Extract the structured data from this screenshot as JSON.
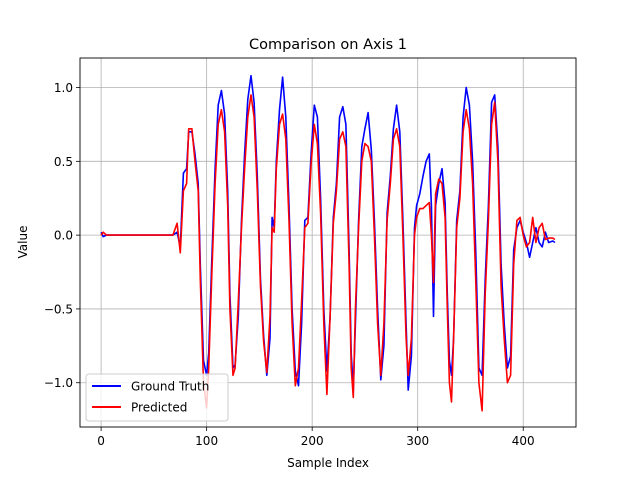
{
  "chart_data": {
    "type": "line",
    "title": "Comparison on Axis 1",
    "xlabel": "Sample Index",
    "ylabel": "Value",
    "xlim": [
      -20,
      450
    ],
    "ylim": [
      -1.3,
      1.2
    ],
    "x_ticks": [
      0,
      100,
      200,
      300,
      400
    ],
    "x_tick_labels": [
      "0",
      "100",
      "200",
      "300",
      "400"
    ],
    "y_ticks": [
      -1.0,
      -0.5,
      0.0,
      0.5,
      1.0
    ],
    "y_tick_labels": [
      "−1.0",
      "−0.5",
      "0.0",
      "0.5",
      "1.0"
    ],
    "grid": true,
    "legend_position": "lower-left",
    "series": [
      {
        "name": "Ground Truth",
        "color": "#0000ff",
        "points": [
          [
            0,
            0.02
          ],
          [
            2,
            -0.01
          ],
          [
            5,
            0.0
          ],
          [
            10,
            0.0
          ],
          [
            20,
            0.0
          ],
          [
            30,
            0.0
          ],
          [
            40,
            0.0
          ],
          [
            50,
            0.0
          ],
          [
            60,
            0.0
          ],
          [
            68,
            0.0
          ],
          [
            72,
            0.02
          ],
          [
            75,
            -0.08
          ],
          [
            78,
            0.42
          ],
          [
            81,
            0.45
          ],
          [
            83,
            0.7
          ],
          [
            86,
            0.7
          ],
          [
            89,
            0.55
          ],
          [
            92,
            0.35
          ],
          [
            94,
            -0.2
          ],
          [
            97,
            -0.85
          ],
          [
            100,
            -0.95
          ],
          [
            102,
            -0.8
          ],
          [
            105,
            -0.15
          ],
          [
            108,
            0.45
          ],
          [
            111,
            0.88
          ],
          [
            114,
            0.98
          ],
          [
            117,
            0.82
          ],
          [
            120,
            0.3
          ],
          [
            122,
            -0.4
          ],
          [
            125,
            -0.9
          ],
          [
            127,
            -0.88
          ],
          [
            130,
            -0.55
          ],
          [
            133,
            0.1
          ],
          [
            136,
            0.55
          ],
          [
            139,
            0.92
          ],
          [
            142,
            1.08
          ],
          [
            145,
            0.9
          ],
          [
            148,
            0.4
          ],
          [
            151,
            -0.3
          ],
          [
            154,
            -0.68
          ],
          [
            157,
            -0.95
          ],
          [
            160,
            -0.7
          ],
          [
            162,
            0.12
          ],
          [
            164,
            0.05
          ],
          [
            166,
            0.5
          ],
          [
            169,
            0.85
          ],
          [
            172,
            1.07
          ],
          [
            175,
            0.8
          ],
          [
            178,
            0.2
          ],
          [
            181,
            -0.5
          ],
          [
            184,
            -0.92
          ],
          [
            187,
            -1.02
          ],
          [
            190,
            -0.6
          ],
          [
            193,
            0.1
          ],
          [
            196,
            0.12
          ],
          [
            199,
            0.55
          ],
          [
            202,
            0.88
          ],
          [
            205,
            0.8
          ],
          [
            208,
            0.25
          ],
          [
            211,
            -0.5
          ],
          [
            214,
            -0.92
          ],
          [
            217,
            -0.55
          ],
          [
            220,
            0.12
          ],
          [
            223,
            0.35
          ],
          [
            226,
            0.8
          ],
          [
            229,
            0.87
          ],
          [
            232,
            0.75
          ],
          [
            235,
            -0.1
          ],
          [
            237,
            -0.8
          ],
          [
            239,
            -1.05
          ],
          [
            241,
            -0.6
          ],
          [
            244,
            0.1
          ],
          [
            247,
            0.6
          ],
          [
            250,
            0.72
          ],
          [
            253,
            0.83
          ],
          [
            256,
            0.58
          ],
          [
            259,
            0.1
          ],
          [
            262,
            -0.5
          ],
          [
            265,
            -0.98
          ],
          [
            268,
            -0.75
          ],
          [
            271,
            0.15
          ],
          [
            274,
            0.4
          ],
          [
            277,
            0.72
          ],
          [
            280,
            0.88
          ],
          [
            283,
            0.7
          ],
          [
            286,
            0.1
          ],
          [
            289,
            -0.6
          ],
          [
            291,
            -1.05
          ],
          [
            294,
            -0.82
          ],
          [
            297,
            0.05
          ],
          [
            299,
            0.2
          ],
          [
            302,
            0.28
          ],
          [
            305,
            0.4
          ],
          [
            308,
            0.5
          ],
          [
            311,
            0.55
          ],
          [
            313,
            0.2
          ],
          [
            315,
            -0.55
          ],
          [
            317,
            0.2
          ],
          [
            320,
            0.35
          ],
          [
            323,
            0.45
          ],
          [
            326,
            0.22
          ],
          [
            328,
            -0.4
          ],
          [
            330,
            -0.85
          ],
          [
            332,
            -0.95
          ],
          [
            334,
            -0.7
          ],
          [
            337,
            0.1
          ],
          [
            340,
            0.3
          ],
          [
            343,
            0.8
          ],
          [
            346,
            1.0
          ],
          [
            349,
            0.88
          ],
          [
            352,
            0.5
          ],
          [
            355,
            -0.1
          ],
          [
            358,
            -0.9
          ],
          [
            361,
            -0.95
          ],
          [
            364,
            -0.3
          ],
          [
            367,
            0.2
          ],
          [
            370,
            0.9
          ],
          [
            373,
            0.95
          ],
          [
            376,
            0.6
          ],
          [
            379,
            -0.2
          ],
          [
            382,
            -0.6
          ],
          [
            385,
            -0.9
          ],
          [
            388,
            -0.82
          ],
          [
            391,
            -0.1
          ],
          [
            394,
            0.05
          ],
          [
            397,
            0.1
          ],
          [
            400,
            0.02
          ],
          [
            403,
            -0.05
          ],
          [
            406,
            -0.15
          ],
          [
            409,
            -0.05
          ],
          [
            412,
            0.05
          ],
          [
            415,
            -0.05
          ],
          [
            418,
            -0.08
          ],
          [
            421,
            0.02
          ],
          [
            424,
            -0.05
          ],
          [
            428,
            -0.04
          ],
          [
            430,
            -0.05
          ]
        ]
      },
      {
        "name": "Predicted",
        "color": "#ff0000",
        "points": [
          [
            0,
            0.0
          ],
          [
            2,
            0.02
          ],
          [
            5,
            0.0
          ],
          [
            10,
            0.0
          ],
          [
            20,
            0.0
          ],
          [
            30,
            0.0
          ],
          [
            40,
            0.0
          ],
          [
            50,
            0.0
          ],
          [
            60,
            0.0
          ],
          [
            68,
            0.0
          ],
          [
            72,
            0.08
          ],
          [
            75,
            -0.12
          ],
          [
            78,
            0.3
          ],
          [
            81,
            0.35
          ],
          [
            83,
            0.72
          ],
          [
            86,
            0.72
          ],
          [
            89,
            0.5
          ],
          [
            92,
            0.3
          ],
          [
            94,
            -0.3
          ],
          [
            97,
            -1.0
          ],
          [
            100,
            -1.17
          ],
          [
            102,
            -0.9
          ],
          [
            105,
            -0.25
          ],
          [
            108,
            0.35
          ],
          [
            111,
            0.75
          ],
          [
            114,
            0.85
          ],
          [
            117,
            0.7
          ],
          [
            120,
            0.2
          ],
          [
            122,
            -0.5
          ],
          [
            125,
            -0.95
          ],
          [
            127,
            -0.9
          ],
          [
            130,
            -0.45
          ],
          [
            133,
            0.05
          ],
          [
            136,
            0.45
          ],
          [
            139,
            0.8
          ],
          [
            142,
            0.95
          ],
          [
            145,
            0.8
          ],
          [
            148,
            0.3
          ],
          [
            151,
            -0.35
          ],
          [
            154,
            -0.72
          ],
          [
            157,
            -0.93
          ],
          [
            160,
            -0.55
          ],
          [
            162,
            0.05
          ],
          [
            164,
            0.02
          ],
          [
            166,
            0.45
          ],
          [
            169,
            0.75
          ],
          [
            172,
            0.82
          ],
          [
            175,
            0.65
          ],
          [
            178,
            0.1
          ],
          [
            181,
            -0.6
          ],
          [
            184,
            -1.02
          ],
          [
            187,
            -0.9
          ],
          [
            190,
            -0.45
          ],
          [
            193,
            0.05
          ],
          [
            196,
            0.08
          ],
          [
            199,
            0.48
          ],
          [
            202,
            0.75
          ],
          [
            205,
            0.62
          ],
          [
            208,
            0.15
          ],
          [
            211,
            -0.6
          ],
          [
            214,
            -1.08
          ],
          [
            217,
            -0.55
          ],
          [
            220,
            0.08
          ],
          [
            223,
            0.3
          ],
          [
            226,
            0.65
          ],
          [
            229,
            0.7
          ],
          [
            232,
            0.6
          ],
          [
            235,
            -0.2
          ],
          [
            237,
            -0.9
          ],
          [
            239,
            -1.1
          ],
          [
            241,
            -0.5
          ],
          [
            244,
            0.05
          ],
          [
            247,
            0.5
          ],
          [
            250,
            0.62
          ],
          [
            253,
            0.6
          ],
          [
            256,
            0.5
          ],
          [
            259,
            0.0
          ],
          [
            262,
            -0.6
          ],
          [
            265,
            -0.95
          ],
          [
            268,
            -0.6
          ],
          [
            271,
            0.1
          ],
          [
            274,
            0.35
          ],
          [
            277,
            0.65
          ],
          [
            280,
            0.72
          ],
          [
            283,
            0.6
          ],
          [
            286,
            0.0
          ],
          [
            289,
            -0.7
          ],
          [
            291,
            -0.95
          ],
          [
            294,
            -0.7
          ],
          [
            297,
            0.0
          ],
          [
            299,
            0.12
          ],
          [
            302,
            0.18
          ],
          [
            305,
            0.18
          ],
          [
            308,
            0.2
          ],
          [
            311,
            0.22
          ],
          [
            313,
            0.0
          ],
          [
            315,
            -0.32
          ],
          [
            317,
            0.28
          ],
          [
            320,
            0.38
          ],
          [
            323,
            0.35
          ],
          [
            326,
            0.12
          ],
          [
            328,
            -0.5
          ],
          [
            330,
            -1.0
          ],
          [
            332,
            -1.13
          ],
          [
            334,
            -0.7
          ],
          [
            337,
            0.05
          ],
          [
            340,
            0.25
          ],
          [
            343,
            0.7
          ],
          [
            346,
            0.85
          ],
          [
            349,
            0.72
          ],
          [
            352,
            0.35
          ],
          [
            355,
            -0.3
          ],
          [
            358,
            -1.0
          ],
          [
            361,
            -1.19
          ],
          [
            364,
            -0.4
          ],
          [
            367,
            0.1
          ],
          [
            370,
            0.75
          ],
          [
            373,
            0.9
          ],
          [
            376,
            0.5
          ],
          [
            379,
            -0.35
          ],
          [
            382,
            -0.7
          ],
          [
            385,
            -1.0
          ],
          [
            388,
            -0.95
          ],
          [
            391,
            -0.2
          ],
          [
            394,
            0.1
          ],
          [
            397,
            0.12
          ],
          [
            400,
            0.0
          ],
          [
            403,
            -0.08
          ],
          [
            406,
            -0.05
          ],
          [
            409,
            0.12
          ],
          [
            412,
            -0.05
          ],
          [
            415,
            0.05
          ],
          [
            418,
            0.08
          ],
          [
            421,
            -0.03
          ],
          [
            424,
            -0.02
          ],
          [
            428,
            -0.02
          ],
          [
            430,
            -0.03
          ]
        ]
      }
    ]
  }
}
